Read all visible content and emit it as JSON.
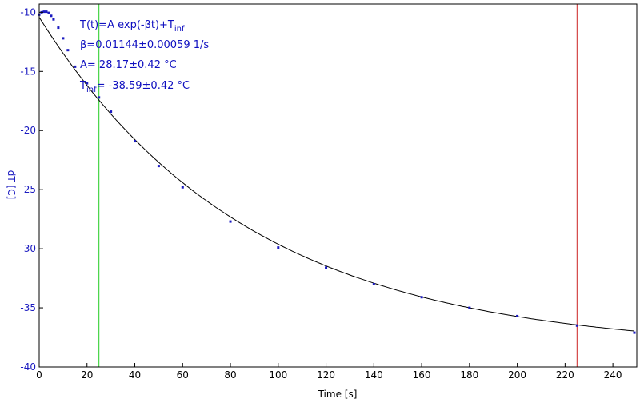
{
  "chart_data": {
    "type": "scatter",
    "xlabel": "Time [s]",
    "ylabel": "dT [C]",
    "xlim": [
      0,
      250
    ],
    "ylim": [
      -40,
      -9.3
    ],
    "xticks": [
      0,
      20,
      40,
      60,
      80,
      100,
      120,
      140,
      160,
      180,
      200,
      220,
      240
    ],
    "yticks": [
      -10,
      -15,
      -20,
      -25,
      -30,
      -35,
      -40
    ],
    "grid": false,
    "colors": {
      "data": "#1a1ac0",
      "fit": "#000000",
      "cursor_left": "#22cc22",
      "cursor_right": "#cc2222",
      "axis_text": "#1a1ac0",
      "xaxis_text": "#000000"
    },
    "annotations": {
      "model_main": "T(t)=A exp(-βt)+T",
      "model_sub": "inf",
      "beta": "β=0.01144±0.00059 1/s",
      "amp": "A= 28.17±0.42 °C",
      "tinf_main": "T",
      "tinf_sub": "inf",
      "tinf_value": "= -38.59±0.42 °C"
    },
    "cursors": [
      25,
      225
    ],
    "fit": {
      "A": 28.17,
      "beta": 0.01144,
      "T_inf": -38.59,
      "t_start": 0,
      "t_end": 249
    },
    "series": [
      {
        "type": "scatter",
        "x": [
          0,
          1,
          2,
          3,
          4,
          5,
          6,
          8,
          10,
          12,
          15,
          20,
          25,
          30,
          40,
          50,
          60,
          80,
          100,
          120,
          140,
          160,
          180,
          200,
          225,
          249
        ],
        "y": [
          -10.2,
          -10.0,
          -9.95,
          -9.95,
          -10.05,
          -10.3,
          -10.6,
          -11.3,
          -12.2,
          -13.2,
          -14.6,
          -16.0,
          -17.2,
          -18.4,
          -20.9,
          -23.0,
          -24.8,
          -27.7,
          -29.9,
          -31.6,
          -33.0,
          -34.1,
          -35.0,
          -35.7,
          -36.5,
          -37.1
        ]
      }
    ]
  }
}
